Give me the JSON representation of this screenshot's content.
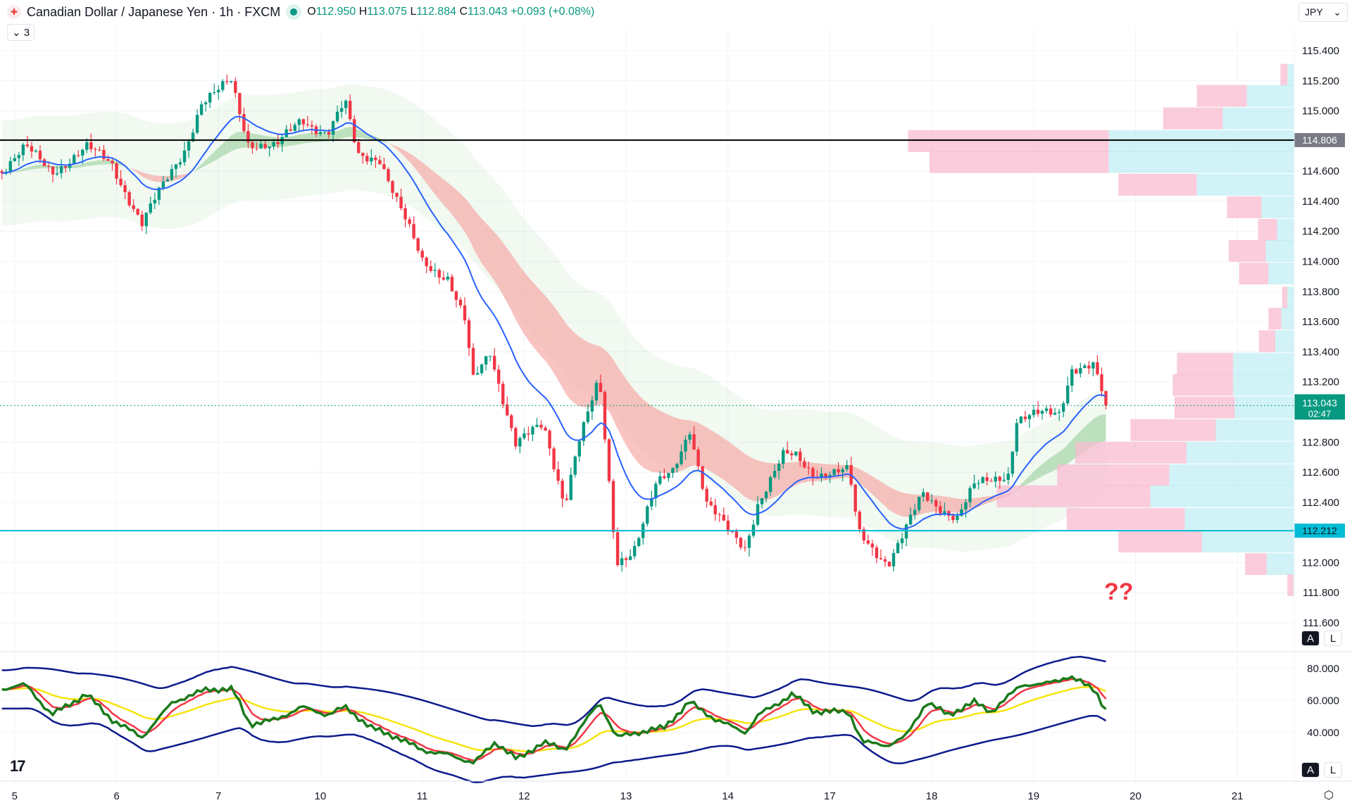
{
  "header": {
    "title": "Canadian Dollar / Japanese Yen · 1h · FXCM",
    "open_label": "O",
    "open": "112.950",
    "high_label": "H",
    "high": "113.075",
    "low_label": "L",
    "low": "112.884",
    "close_label": "C",
    "close": "113.043",
    "change": "+0.093 (+0.08%)",
    "indicators_collapsed": "3"
  },
  "currency": "JPY",
  "annotation": "??",
  "scale_buttons": {
    "auto": "A",
    "log": "L"
  },
  "colors": {
    "up": "#089981",
    "down": "#f23645",
    "blue_line": "#2962ff",
    "bull_cloud": "#a5d6a7",
    "bear_cloud": "#f7a9a7",
    "resistance": "#000000",
    "support": "#00bcd4",
    "profile_sell": "#f8bbd0",
    "profile_buy": "#b2ebf2"
  },
  "chart_data": [
    {
      "type": "candlestick",
      "symbol": "CADJPY",
      "interval": "1h",
      "x_tick_labels": [
        "5",
        "6",
        "7",
        "10",
        "11",
        "12",
        "13",
        "14",
        "17",
        "18",
        "19",
        "20",
        "21"
      ],
      "y_tick_labels": [
        "115.400",
        "115.200",
        "115.000",
        "114.600",
        "114.400",
        "114.200",
        "114.000",
        "113.800",
        "113.600",
        "113.400",
        "113.200",
        "112.800",
        "112.600",
        "112.400",
        "112.000",
        "111.800",
        "111.600"
      ],
      "ylim": [
        111.6,
        115.4
      ],
      "close_keypoints_hours_vs_price": [
        [
          -3.5,
          114.6
        ],
        [
          2.6,
          114.75
        ],
        [
          8.7,
          114.6
        ],
        [
          16.9,
          114.75
        ],
        [
          22.9,
          114.65
        ],
        [
          30,
          114.25
        ],
        [
          35,
          114.5
        ],
        [
          40,
          114.75
        ],
        [
          44,
          115.05
        ],
        [
          47,
          115.1
        ],
        [
          51,
          115.2
        ],
        [
          55,
          114.8
        ],
        [
          61.5,
          114.75
        ],
        [
          67.6,
          114.95
        ],
        [
          73.7,
          114.85
        ],
        [
          77.8,
          115.05
        ],
        [
          80.8,
          114.7
        ],
        [
          85.9,
          114.7
        ],
        [
          90,
          114.4
        ],
        [
          96,
          114.0
        ],
        [
          102,
          113.9
        ],
        [
          106,
          113.6
        ],
        [
          108,
          113.2
        ],
        [
          112,
          113.4
        ],
        [
          116,
          113.0
        ],
        [
          118,
          112.8
        ],
        [
          124.5,
          112.9
        ],
        [
          129.5,
          112.4
        ],
        [
          132.6,
          112.8
        ],
        [
          137.7,
          113.2
        ],
        [
          141.7,
          112.0
        ],
        [
          145.8,
          112.1
        ],
        [
          151,
          112.5
        ],
        [
          155,
          112.6
        ],
        [
          159,
          112.9
        ],
        [
          163,
          112.4
        ],
        [
          168,
          112.2
        ],
        [
          172,
          112.1
        ],
        [
          175,
          112.4
        ],
        [
          181,
          112.7
        ],
        [
          184,
          112.7
        ],
        [
          188,
          112.6
        ],
        [
          196.5,
          112.6
        ],
        [
          198.6,
          112.2
        ],
        [
          205.7,
          112.0
        ],
        [
          209.7,
          112.2
        ],
        [
          213.8,
          112.45
        ],
        [
          222,
          112.3
        ],
        [
          226,
          112.5
        ],
        [
          234,
          112.6
        ],
        [
          236,
          112.95
        ],
        [
          246,
          113.0
        ],
        [
          249,
          113.3
        ],
        [
          254,
          113.3
        ],
        [
          257,
          113.043
        ]
      ],
      "horizontal_lines": [
        {
          "price": "114.806",
          "color": "#000000"
        },
        {
          "price": "112.212",
          "color": "#00bcd4"
        }
      ],
      "last_price": "113.043",
      "countdown": "02:47",
      "volume_profile_rows": [
        [
          115.24,
          16,
          8
        ],
        [
          115.1,
          113,
          58
        ],
        [
          114.95,
          152,
          69
        ],
        [
          114.8,
          448,
          233
        ],
        [
          114.66,
          423,
          208
        ],
        [
          114.51,
          204,
          91
        ],
        [
          114.36,
          78,
          40
        ],
        [
          114.21,
          42,
          22
        ],
        [
          114.07,
          76,
          43
        ],
        [
          113.92,
          64,
          34
        ],
        [
          113.76,
          14,
          6
        ],
        [
          113.62,
          30,
          15
        ],
        [
          113.47,
          41,
          19
        ],
        [
          113.32,
          136,
          65
        ],
        [
          113.18,
          141,
          70
        ],
        [
          113.03,
          139,
          70
        ],
        [
          112.88,
          190,
          99
        ],
        [
          112.73,
          254,
          129
        ],
        [
          112.58,
          275,
          130
        ],
        [
          112.44,
          345,
          178
        ],
        [
          112.29,
          264,
          137
        ],
        [
          112.14,
          204,
          97
        ],
        [
          111.99,
          57,
          25
        ],
        [
          111.85,
          8,
          7
        ]
      ]
    },
    {
      "type": "line",
      "panel": "oscillator",
      "y_tick_labels": [
        "80.000",
        "60.000",
        "40.000"
      ],
      "ylim": [
        20,
        90
      ],
      "keypoints_hours_vs_value": [
        [
          -3.5,
          67
        ],
        [
          2.6,
          70
        ],
        [
          8.7,
          51
        ],
        [
          16.9,
          64
        ],
        [
          22.9,
          48
        ],
        [
          30,
          37
        ],
        [
          37.2,
          59
        ],
        [
          45.3,
          67
        ],
        [
          51.4,
          67
        ],
        [
          55.4,
          45
        ],
        [
          61.5,
          48
        ],
        [
          67.6,
          56
        ],
        [
          73.7,
          51
        ],
        [
          77.8,
          56
        ],
        [
          83.9,
          43
        ],
        [
          90,
          37
        ],
        [
          96,
          29
        ],
        [
          102.1,
          26
        ],
        [
          108.2,
          21
        ],
        [
          113.3,
          34
        ],
        [
          118.4,
          23
        ],
        [
          124.5,
          34
        ],
        [
          129.5,
          29
        ],
        [
          137.7,
          59
        ],
        [
          141.7,
          37
        ],
        [
          146.8,
          40
        ],
        [
          152.9,
          43
        ],
        [
          159,
          59
        ],
        [
          165.1,
          48
        ],
        [
          172.2,
          40
        ],
        [
          175.2,
          51
        ],
        [
          183.3,
          64
        ],
        [
          188.4,
          53
        ],
        [
          196.5,
          53
        ],
        [
          199.6,
          34
        ],
        [
          205.7,
          32
        ],
        [
          209.7,
          37
        ],
        [
          214.8,
          59
        ],
        [
          219.9,
          51
        ],
        [
          226,
          59
        ],
        [
          230,
          53
        ],
        [
          237.2,
          70
        ],
        [
          242.2,
          70
        ],
        [
          248.3,
          75
        ],
        [
          254.4,
          67
        ],
        [
          257.5,
          51
        ]
      ]
    }
  ]
}
